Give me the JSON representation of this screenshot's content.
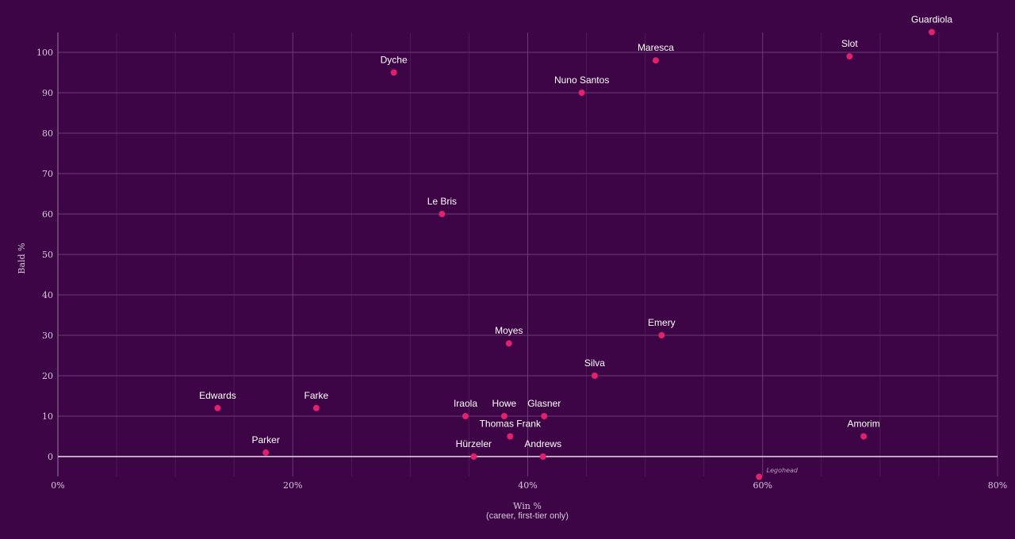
{
  "chart_data": {
    "type": "scatter",
    "title": "",
    "xlabel": "Win %",
    "xlabel_sub": "(career, first-tier only)",
    "ylabel": "Bald %",
    "xlim": [
      0,
      80
    ],
    "ylim": [
      -5,
      105
    ],
    "x_ticks": [
      {
        "value": 0,
        "label": "0%"
      },
      {
        "value": 20,
        "label": "20%"
      },
      {
        "value": 40,
        "label": "40%"
      },
      {
        "value": 60,
        "label": "60%"
      },
      {
        "value": 80,
        "label": "80%"
      }
    ],
    "y_ticks": [
      {
        "value": 0,
        "label": "0"
      },
      {
        "value": 10,
        "label": "10"
      },
      {
        "value": 20,
        "label": "20"
      },
      {
        "value": 30,
        "label": "30"
      },
      {
        "value": 40,
        "label": "40"
      },
      {
        "value": 50,
        "label": "50"
      },
      {
        "value": 60,
        "label": "60"
      },
      {
        "value": 70,
        "label": "70"
      },
      {
        "value": 80,
        "label": "80"
      },
      {
        "value": 90,
        "label": "90"
      },
      {
        "value": 100,
        "label": "100"
      }
    ],
    "points": [
      {
        "name": "Guardiola",
        "x": 74.4,
        "y": 105
      },
      {
        "name": "Slot",
        "x": 67.4,
        "y": 99
      },
      {
        "name": "Maresca",
        "x": 50.9,
        "y": 98
      },
      {
        "name": "Dyche",
        "x": 28.6,
        "y": 95
      },
      {
        "name": "Nuno Santos",
        "x": 44.6,
        "y": 90
      },
      {
        "name": "Le Bris",
        "x": 32.7,
        "y": 60
      },
      {
        "name": "Moyes",
        "x": 38.4,
        "y": 28
      },
      {
        "name": "Emery",
        "x": 51.4,
        "y": 30
      },
      {
        "name": "Silva",
        "x": 45.7,
        "y": 20
      },
      {
        "name": "Edwards",
        "x": 13.6,
        "y": 12
      },
      {
        "name": "Farke",
        "x": 22.0,
        "y": 12
      },
      {
        "name": "Iraola",
        "x": 34.7,
        "y": 10
      },
      {
        "name": "Howe",
        "x": 38.0,
        "y": 10
      },
      {
        "name": "Glasner",
        "x": 41.4,
        "y": 10
      },
      {
        "name": "Thomas Frank",
        "x": 38.5,
        "y": 5
      },
      {
        "name": "Amorim",
        "x": 68.6,
        "y": 5
      },
      {
        "name": "Parker",
        "x": 17.7,
        "y": 1
      },
      {
        "name": "Hürzeler",
        "x": 35.4,
        "y": 0
      },
      {
        "name": "Andrews",
        "x": 41.3,
        "y": 0
      },
      {
        "name": "Legohead",
        "x": 59.7,
        "y": -5
      }
    ]
  },
  "watermark": "Legohead",
  "colors": {
    "background": "#3d0545",
    "point": "#e0226e",
    "grid": "#6b3a75",
    "text": "#d9c6de"
  }
}
